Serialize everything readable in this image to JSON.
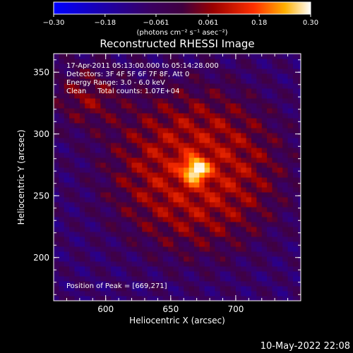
{
  "chart_data": {
    "type": "heatmap",
    "title": "Reconstructed RHESSI Image",
    "xlabel": "Heliocentric X (arcsec)",
    "ylabel": "Heliocentric Y (arcsec)",
    "xlim": [
      560,
      750
    ],
    "ylim": [
      165,
      365
    ],
    "x_ticks": [
      600,
      650,
      700
    ],
    "y_ticks": [
      200,
      250,
      300,
      350
    ],
    "colorbar": {
      "min": -0.3,
      "max": 0.3,
      "tick_labels": [
        "−0.30",
        "−0.18",
        "−0.061",
        "0.061",
        "0.18",
        "0.30"
      ],
      "tick_values": [
        -0.3,
        -0.18,
        -0.061,
        0.061,
        0.18,
        0.3
      ],
      "units": "(photons cm⁻² s⁻¹ asec⁻²)"
    },
    "source": {
      "peak_position": [
        669,
        271
      ],
      "peak_value": 0.3,
      "background_value": -0.1
    },
    "annotations": [
      "17-Apr-2011 05:13:00.000 to 05:14:28.000",
      "Detectors: 3F 4F 5F 6F 7F 8F, Att 0",
      "Energy Range: 3.0 - 6.0 keV",
      "Clean     Total counts: 1.07E+04"
    ],
    "peak_label": "Position of Peak = [669,271]",
    "grid": false
  },
  "footer": {
    "timestamp": "10-May-2022 22:08"
  }
}
